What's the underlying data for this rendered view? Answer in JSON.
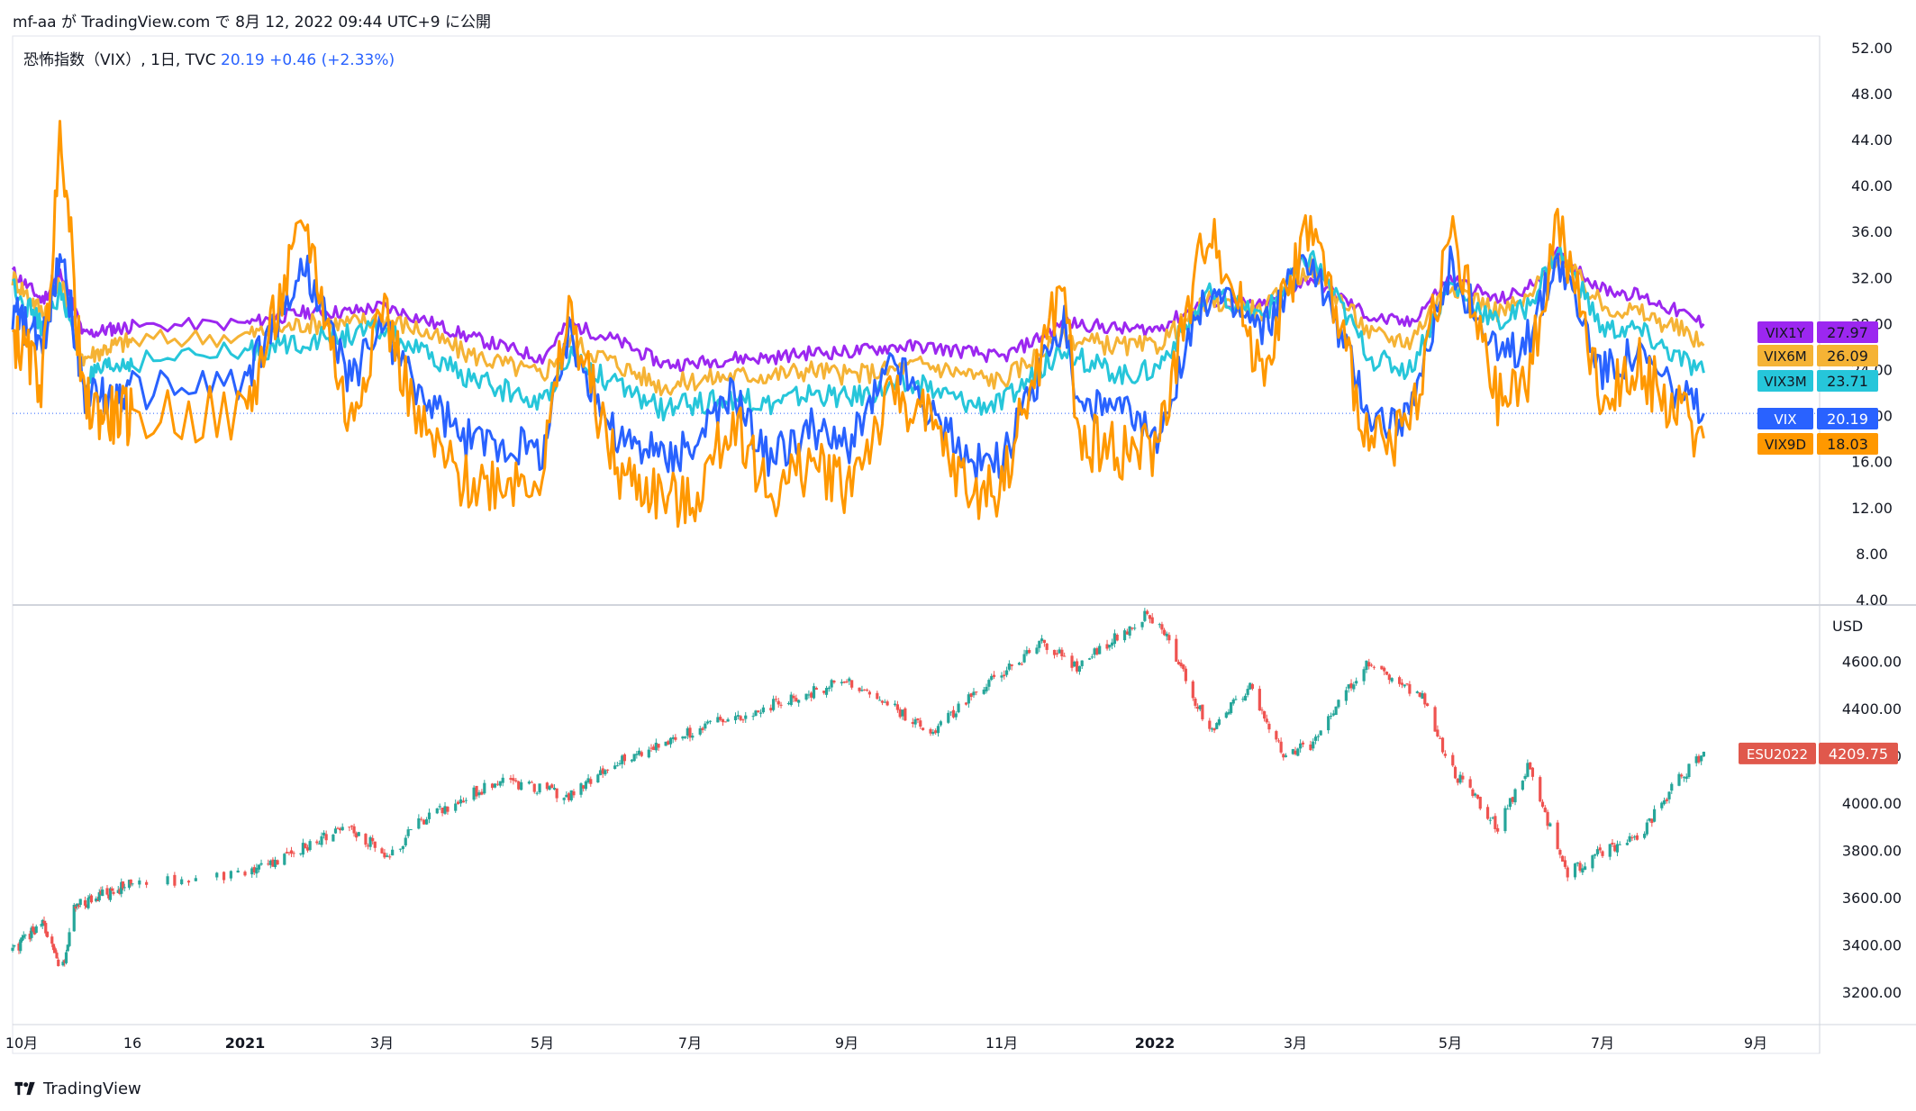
{
  "header": {
    "publish_text": "mf-aa が TradingView.com で 8月 12, 2022 09:44 UTC+9 に公開"
  },
  "legend": {
    "symbol": "恐怖指数（VIX）, 1日, TVC",
    "last": "20.19",
    "change": "+0.46 (+2.33%)"
  },
  "footer": {
    "brand": "TradingView",
    "logo": "tradingview-logo-icon"
  },
  "colors": {
    "vix": "#2962ff",
    "vix9d": "#ff9800",
    "vix3m": "#26c6da",
    "vix6m": "#f5b335",
    "vix1y": "#9c27f0",
    "up": "#26a69a",
    "down": "#ef5350",
    "es_label": "#e0584c"
  },
  "chart_data": [
    {
      "type": "line",
      "title": "恐怖指数（VIX）, 1日, TVC",
      "x_ticks": [
        "10月",
        "16",
        "2021",
        "3月",
        "5月",
        "7月",
        "9月",
        "11月",
        "2022",
        "3月",
        "5月",
        "7月",
        "9月"
      ],
      "y_ticks": [
        "52.00",
        "48.00",
        "44.00",
        "40.00",
        "36.00",
        "32.00",
        "28.00",
        "24.00",
        "20.00",
        "16.00",
        "12.00",
        "8.00",
        "4.00"
      ],
      "ylim": [
        4,
        53
      ],
      "x_anchor_dates": [
        "2020-10-01",
        "2020-12-16",
        "2021-01-01",
        "2021-03-01",
        "2021-05-01",
        "2021-07-01",
        "2021-09-01",
        "2021-11-01",
        "2022-01-01",
        "2022-03-01",
        "2022-05-01",
        "2022-07-01",
        "2022-09-01"
      ],
      "series_anchor_dates": [
        "2020-10-01",
        "2020-10-20",
        "2020-11-01",
        "2020-11-15",
        "2020-12-01",
        "2021-01-01",
        "2021-01-27",
        "2021-02-15",
        "2021-03-01",
        "2021-03-15",
        "2021-04-01",
        "2021-05-01",
        "2021-05-12",
        "2021-06-01",
        "2021-06-20",
        "2021-07-01",
        "2021-07-19",
        "2021-08-01",
        "2021-08-19",
        "2021-09-01",
        "2021-09-20",
        "2021-10-01",
        "2021-10-20",
        "2021-11-01",
        "2021-11-26",
        "2021-12-01",
        "2021-12-20",
        "2022-01-01",
        "2022-01-24",
        "2022-02-15",
        "2022-03-07",
        "2022-03-31",
        "2022-04-15",
        "2022-05-01",
        "2022-05-20",
        "2022-06-01",
        "2022-06-13",
        "2022-07-01",
        "2022-07-15",
        "2022-08-01",
        "2022-08-11"
      ],
      "series": [
        {
          "name": "VIX1Y",
          "last": "27.97",
          "values": [
            32.5,
            30.0,
            32.5,
            27.0,
            27.5,
            28.0,
            29.0,
            29.0,
            29.5,
            28.5,
            27.0,
            25.0,
            28.0,
            26.5,
            24.5,
            24.5,
            25.0,
            25.0,
            25.5,
            25.5,
            26.0,
            26.0,
            25.5,
            25.0,
            28.0,
            28.0,
            27.5,
            27.5,
            30.0,
            29.5,
            32.0,
            28.5,
            28.0,
            32.0,
            30.0,
            31.0,
            34.0,
            31.0,
            30.5,
            29.0,
            27.97
          ]
        },
        {
          "name": "VIX6M",
          "last": "26.09",
          "values": [
            32.0,
            29.0,
            31.5,
            25.0,
            26.0,
            27.0,
            28.0,
            28.0,
            28.5,
            27.5,
            25.5,
            23.5,
            26.5,
            24.5,
            22.5,
            23.0,
            23.5,
            23.5,
            24.0,
            23.5,
            24.0,
            24.5,
            23.5,
            23.0,
            27.0,
            26.5,
            26.0,
            26.0,
            30.0,
            29.0,
            33.0,
            27.0,
            26.5,
            31.5,
            29.0,
            30.0,
            34.0,
            29.5,
            29.0,
            27.5,
            26.09
          ]
        },
        {
          "name": "VIX3M",
          "last": "23.71",
          "values": [
            31.5,
            27.5,
            31.0,
            23.0,
            24.0,
            25.5,
            26.5,
            27.0,
            27.5,
            25.5,
            23.5,
            21.0,
            25.5,
            22.5,
            20.5,
            21.0,
            21.5,
            21.0,
            22.0,
            21.5,
            22.5,
            22.5,
            21.0,
            21.0,
            26.0,
            25.0,
            23.5,
            24.0,
            30.5,
            28.5,
            34.0,
            25.0,
            24.0,
            31.5,
            28.0,
            29.5,
            34.5,
            27.5,
            27.5,
            25.0,
            23.71
          ]
        },
        {
          "name": "VIX",
          "last": "20.19",
          "values": [
            29.0,
            26.0,
            35.0,
            22.0,
            21.5,
            23.0,
            33.0,
            23.0,
            28.0,
            22.0,
            18.0,
            17.0,
            27.0,
            18.0,
            16.5,
            17.0,
            22.0,
            16.0,
            19.0,
            17.0,
            25.0,
            21.0,
            16.0,
            16.0,
            28.5,
            21.0,
            20.0,
            18.0,
            31.0,
            27.5,
            34.0,
            20.0,
            19.5,
            33.0,
            25.0,
            26.5,
            34.0,
            24.0,
            25.5,
            22.0,
            20.19
          ]
        },
        {
          "name": "VIX9D",
          "last": "18.03",
          "values": [
            27.0,
            23.0,
            45.0,
            21.0,
            20.0,
            20.0,
            37.0,
            19.0,
            30.0,
            19.0,
            14.0,
            15.0,
            29.0,
            15.0,
            13.0,
            12.0,
            20.0,
            13.0,
            16.0,
            14.0,
            22.0,
            20.0,
            13.0,
            14.0,
            32.0,
            18.0,
            17.0,
            17.0,
            37.0,
            24.0,
            37.0,
            17.0,
            19.0,
            36.0,
            21.0,
            23.0,
            37.0,
            21.0,
            24.5,
            20.0,
            18.03
          ]
        }
      ]
    },
    {
      "type": "candlestick",
      "series_name": "ESU2022",
      "unit": "USD",
      "last": "4209.75",
      "y_ticks": [
        "4600.00",
        "4400.00",
        "4200.00",
        "4000.00",
        "3800.00",
        "3600.00",
        "3400.00",
        "3200.00"
      ],
      "ylim": [
        3100,
        4800
      ],
      "anchor_dates": [
        "2020-10-01",
        "2020-10-20",
        "2020-11-01",
        "2020-11-09",
        "2020-12-01",
        "2021-01-01",
        "2021-02-15",
        "2021-03-04",
        "2021-03-15",
        "2021-04-15",
        "2021-05-12",
        "2021-06-01",
        "2021-07-01",
        "2021-08-01",
        "2021-09-02",
        "2021-10-04",
        "2021-10-20",
        "2021-11-18",
        "2021-12-01",
        "2021-12-28",
        "2022-01-05",
        "2022-01-24",
        "2022-02-10",
        "2022-02-24",
        "2022-03-08",
        "2022-03-29",
        "2022-04-20",
        "2022-05-01",
        "2022-05-20",
        "2022-06-01",
        "2022-06-17",
        "2022-07-01",
        "2022-07-15",
        "2022-08-01",
        "2022-08-11"
      ],
      "closes": [
        3370,
        3500,
        3270,
        3560,
        3620,
        3700,
        3900,
        3770,
        3920,
        4100,
        4030,
        4170,
        4300,
        4410,
        4520,
        4300,
        4450,
        4680,
        4580,
        4790,
        4720,
        4300,
        4500,
        4200,
        4250,
        4600,
        4450,
        4150,
        3900,
        4150,
        3700,
        3800,
        3850,
        4100,
        4209.75
      ]
    }
  ]
}
